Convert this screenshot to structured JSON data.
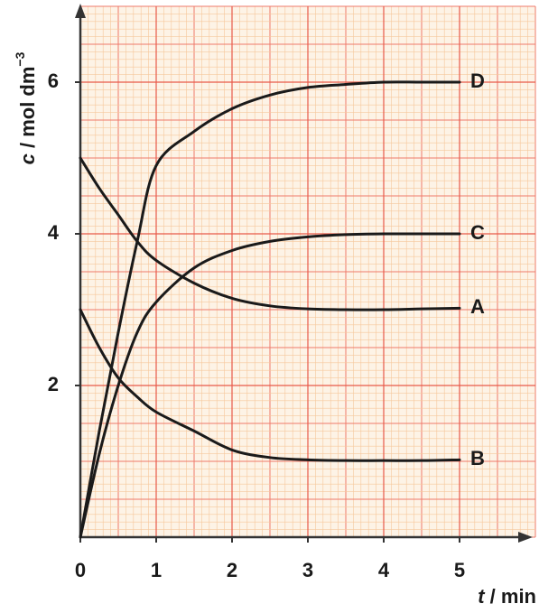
{
  "chart_data": {
    "type": "line",
    "x_label": {
      "variable": "t",
      "unit": " / min"
    },
    "y_label": {
      "variable": "c",
      "unit": " / mol dm",
      "power": "−3"
    },
    "x": [
      0,
      0.25,
      0.5,
      0.75,
      1,
      1.5,
      2,
      2.5,
      3,
      3.5,
      4,
      4.5,
      5
    ],
    "series": [
      {
        "name": "D",
        "color": "#1a1a1a",
        "values": [
          0,
          1.4,
          2.7,
          3.9,
          4.9,
          5.35,
          5.65,
          5.83,
          5.93,
          5.97,
          6,
          6,
          6
        ]
      },
      {
        "name": "C",
        "color": "#1a1a1a",
        "values": [
          0,
          1.1,
          2.0,
          2.7,
          3.1,
          3.55,
          3.78,
          3.9,
          3.96,
          3.99,
          4,
          4,
          4
        ]
      },
      {
        "name": "A",
        "color": "#1a1a1a",
        "values": [
          5,
          4.6,
          4.25,
          3.9,
          3.65,
          3.35,
          3.15,
          3.05,
          3.01,
          3,
          3,
          3.01,
          3.02
        ]
      },
      {
        "name": "B",
        "color": "#1a1a1a",
        "values": [
          3,
          2.5,
          2.1,
          1.85,
          1.65,
          1.4,
          1.15,
          1.05,
          1.02,
          1.01,
          1.01,
          1.01,
          1.02
        ]
      }
    ],
    "xlim": [
      0,
      6
    ],
    "ylim": [
      0,
      7
    ],
    "xticks": [
      0,
      1,
      2,
      3,
      4,
      5
    ],
    "yticks": [
      2,
      4,
      6
    ],
    "grid": true
  }
}
